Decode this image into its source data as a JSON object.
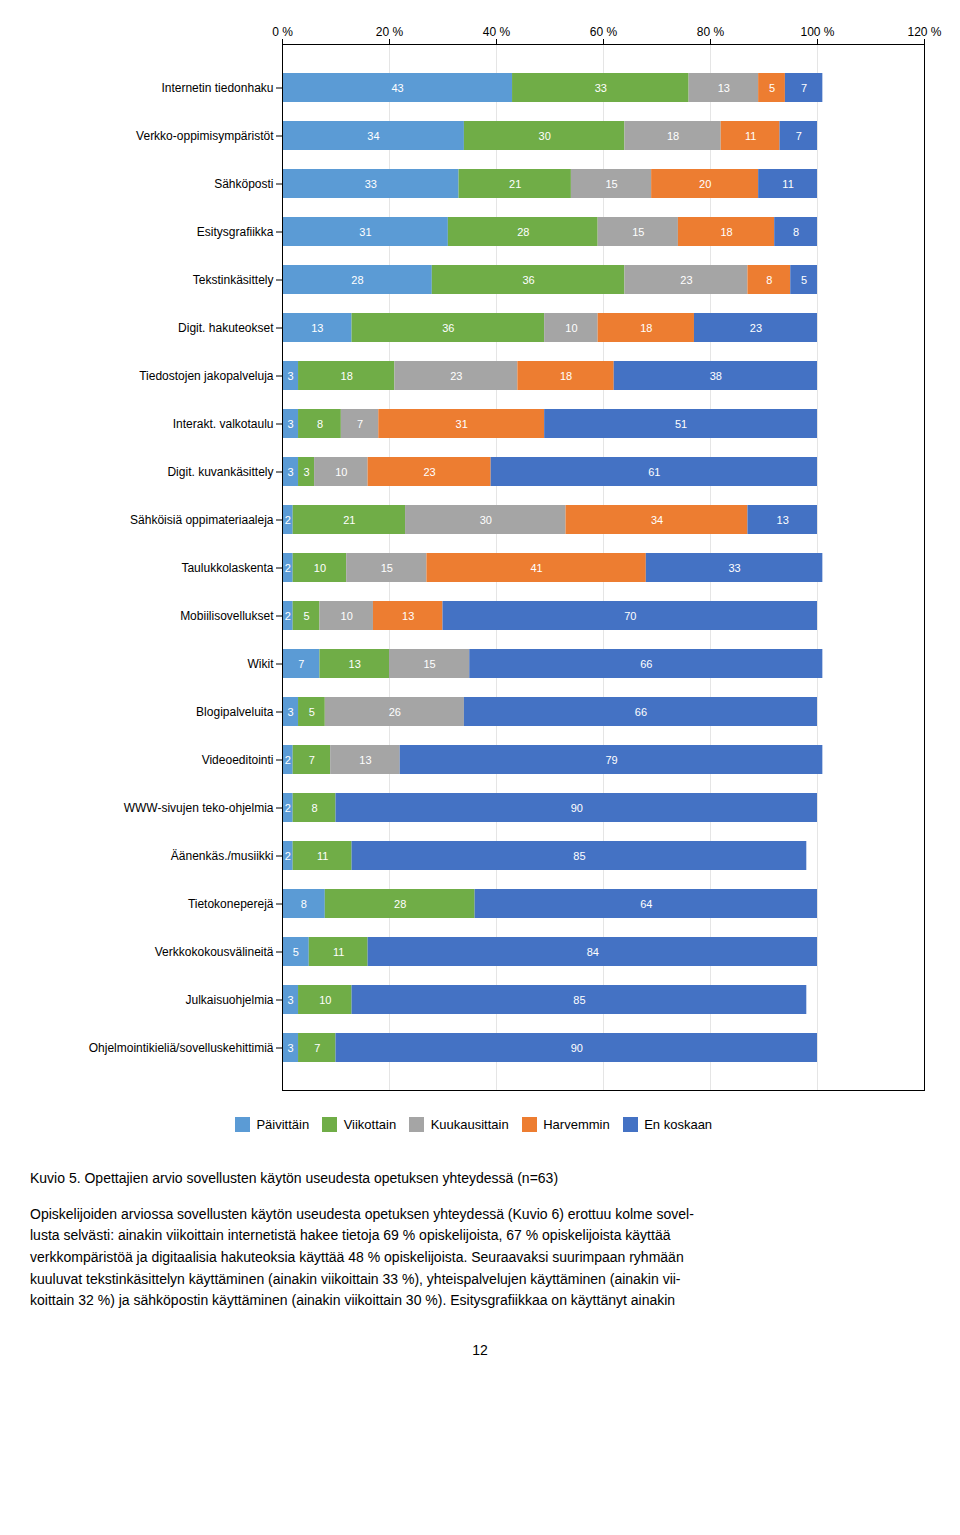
{
  "chart_data": {
    "type": "bar",
    "orientation": "horizontal",
    "stacked": true,
    "title": "Kuvio 5. Opettajien arvio sovellusten käytön useudesta opetuksen yhteydessä (n=63)",
    "annotations": [
      "Opiskelijoiden arviossa sovellusten käytön useudesta opetuksen yhteydessä (Kuvio 6) erottuu kolme sovel-",
      "lusta selvästi: ainakin viikoittain internetistä hakee tietoja 69 % opiskelijoista, 67 % opiskelijoista käyttää",
      "verkkompäristöä ja digitaalisia hakuteoksia käyttää 48 % opiskelijoista. Seuraavaksi suurimpaan ryhmään",
      "kuuluvat tekstinkäsittelyn käyttäminen (ainakin viikoittain 33 %), yhteispalvelujen käyttäminen (ainakin vii-",
      "koittain 32 %) ja sähköpostin käyttäminen (ainakin viikoittain 30 %). Esitysgrafiikkaa on käyttänyt ainakin",
      "12"
    ],
    "categories": [
      "Internetin tiedonhaku",
      "Verkko-oppimisympäristöt",
      "Sähköposti",
      "Esitysgrafiikka",
      "Tekstinkäsittely",
      "Digit. hakuteokset",
      "Tiedostojen jakopalveluja",
      "Interakt. valkotaulu",
      "Digit. kuvankäsittely",
      "Sähköisiä oppimateriaaleja",
      "Taulukkolaskenta",
      "Mobiilisovellukset",
      "Wikit",
      "Blogipalveluita",
      "Videoeditointi",
      "WWW-sivujen teko-ohjelmia",
      "Äänenkäs./musiikki",
      "Tietokoneperejä",
      "Verkkokokousvälineitä",
      "Julkaisuohjelmia",
      "Ohjelmointikieliä/sovelluskehittimiä"
    ],
    "series": [
      {
        "name": "Päivittäin",
        "color": "#5B9BD5",
        "values": [
          43,
          34,
          33,
          31,
          28,
          13,
          3,
          3,
          3,
          2,
          2,
          2,
          7,
          3,
          2,
          2,
          2,
          8,
          5,
          3,
          3
        ]
      },
      {
        "name": "Viikottain",
        "color": "#70AD47",
        "values": [
          33,
          30,
          21,
          28,
          36,
          36,
          18,
          8,
          3,
          21,
          10,
          5,
          13,
          5,
          7,
          8,
          11,
          28,
          11,
          10,
          7
        ]
      },
      {
        "name": "Kuukausittain",
        "color": "#A5A5A5",
        "values": [
          13,
          18,
          15,
          15,
          23,
          10,
          23,
          7,
          10,
          30,
          15,
          10,
          15,
          26,
          13,
          0,
          0,
          0,
          0,
          0,
          0
        ]
      },
      {
        "name": "Harvemmin",
        "color": "#ED7D31",
        "values": [
          5,
          11,
          20,
          18,
          8,
          18,
          18,
          31,
          23,
          34,
          41,
          13,
          0,
          0,
          0,
          0,
          0,
          0,
          0,
          0,
          0
        ]
      },
      {
        "name": "En koskaan",
        "color": "#4472C4",
        "values": [
          7,
          7,
          11,
          8,
          5,
          23,
          38,
          51,
          61,
          13,
          33,
          70,
          66,
          66,
          79,
          90,
          85,
          64,
          84,
          85,
          90
        ]
      }
    ],
    "xlim": [
      0,
      120
    ],
    "xticks": [
      {
        "value": 0,
        "label": "0 %"
      },
      {
        "value": 20,
        "label": "20 %"
      },
      {
        "value": 40,
        "label": "40 %"
      },
      {
        "value": 60,
        "label": "60 %"
      },
      {
        "value": 80,
        "label": "80 %"
      },
      {
        "value": 100,
        "label": "100 %"
      },
      {
        "value": 120,
        "label": "120 %"
      }
    ],
    "grid": true,
    "legend": "bottom",
    "data_labels": true
  }
}
